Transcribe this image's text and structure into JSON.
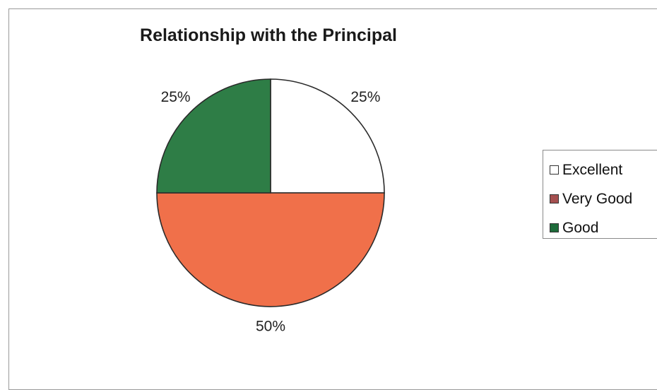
{
  "chart_data": {
    "type": "pie",
    "title": "Relationship with the Principal",
    "categories": [
      "Excellent",
      "Very Good",
      "Good"
    ],
    "values": [
      25,
      50,
      25
    ],
    "labels": [
      "25%",
      "50%",
      "25%"
    ],
    "colors": [
      "#ffffff",
      "#f0704a",
      "#2e7d46"
    ],
    "legend": {
      "placement": "right",
      "items": [
        {
          "label": "Excellent",
          "color": "#ffffff"
        },
        {
          "label": "Very Good",
          "color": "#a55050"
        },
        {
          "label": "Good",
          "color": "#1e6b3a"
        }
      ]
    }
  }
}
